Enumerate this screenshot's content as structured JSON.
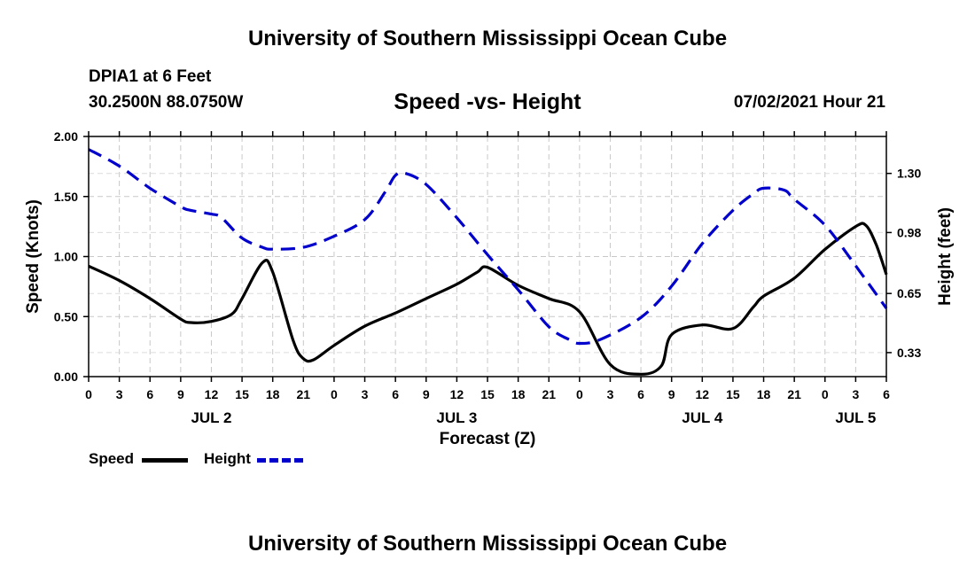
{
  "header": {
    "title": "University of Southern Mississippi Ocean Cube",
    "station": "DPIA1 at 6 Feet",
    "coords": "30.2500N  88.0750W",
    "chart_title": "Speed -vs- Height",
    "datetime": "07/02/2021 Hour 21"
  },
  "footer": {
    "title": "University of Southern Mississippi Ocean Cube"
  },
  "legend": [
    {
      "label": "Speed",
      "color": "#000000",
      "style": "solid"
    },
    {
      "label": "Height",
      "color": "#0000cc",
      "style": "dashed"
    }
  ],
  "chart_data": {
    "type": "line",
    "title": "Speed -vs- Height",
    "xlabel": "Forecast (Z)",
    "ylabel": "Speed (Knots)",
    "y2label": "Height (feet)",
    "xlim": [
      0,
      78
    ],
    "ylim": [
      0,
      2.0
    ],
    "y2lim": [
      0.2,
      1.5
    ],
    "x_ticks": [
      0,
      3,
      6,
      9,
      12,
      15,
      18,
      21,
      24,
      27,
      30,
      33,
      36,
      39,
      42,
      45,
      48,
      51,
      54,
      57,
      60,
      63,
      66,
      69,
      72,
      75,
      78
    ],
    "x_tick_labels": [
      "0",
      "3",
      "6",
      "9",
      "12",
      "15",
      "18",
      "21",
      "0",
      "3",
      "6",
      "9",
      "12",
      "15",
      "18",
      "21",
      "0",
      "3",
      "6",
      "9",
      "12",
      "15",
      "18",
      "21",
      "0",
      "3",
      "6"
    ],
    "date_labels": [
      {
        "label": "JUL 2",
        "x": 12
      },
      {
        "label": "JUL 3",
        "x": 36
      },
      {
        "label": "JUL 4",
        "x": 60
      },
      {
        "label": "JUL 5",
        "x": 75
      }
    ],
    "y_ticks": [
      0,
      0.5,
      1.0,
      1.5,
      2.0
    ],
    "y_tick_labels": [
      "0.00",
      "0.50",
      "1.00",
      "1.50",
      "2.00"
    ],
    "y2_ticks": [
      0.33,
      0.65,
      0.98,
      1.3
    ],
    "y2_tick_labels": [
      "0.33",
      "0.65",
      "0.98",
      "1.30"
    ],
    "grid": true,
    "series": [
      {
        "name": "Speed",
        "axis": "left",
        "color": "#000000",
        "dash": "solid",
        "x": [
          0,
          3,
          6,
          9,
          10,
          12,
          14,
          15,
          17,
          18,
          20,
          21,
          22,
          24,
          27,
          30,
          33,
          36,
          38,
          39,
          42,
          45,
          48,
          51,
          54,
          56,
          57,
          60,
          63,
          65,
          66,
          69,
          72,
          75,
          76,
          77,
          78
        ],
        "y": [
          0.92,
          0.8,
          0.65,
          0.48,
          0.45,
          0.46,
          0.52,
          0.65,
          0.95,
          0.87,
          0.3,
          0.15,
          0.14,
          0.26,
          0.42,
          0.53,
          0.65,
          0.77,
          0.87,
          0.91,
          0.76,
          0.65,
          0.54,
          0.1,
          0.02,
          0.09,
          0.35,
          0.43,
          0.4,
          0.58,
          0.67,
          0.82,
          1.06,
          1.25,
          1.26,
          1.1,
          0.85
        ]
      },
      {
        "name": "Height",
        "axis": "right",
        "color": "#0000cc",
        "dash": "dashed",
        "x": [
          0,
          3,
          6,
          9,
          10,
          12,
          13,
          15,
          17,
          18,
          21,
          24,
          27,
          29,
          30,
          31,
          33,
          36,
          39,
          42,
          45,
          47,
          48,
          50,
          54,
          57,
          60,
          63,
          65,
          66,
          68,
          69,
          72,
          75,
          78
        ],
        "y": [
          1.43,
          1.34,
          1.22,
          1.12,
          1.1,
          1.08,
          1.06,
          0.95,
          0.9,
          0.89,
          0.9,
          0.96,
          1.05,
          1.2,
          1.29,
          1.3,
          1.24,
          1.06,
          0.86,
          0.67,
          0.47,
          0.4,
          0.38,
          0.4,
          0.52,
          0.69,
          0.92,
          1.1,
          1.19,
          1.22,
          1.21,
          1.16,
          1.02,
          0.8,
          0.57
        ]
      }
    ]
  }
}
